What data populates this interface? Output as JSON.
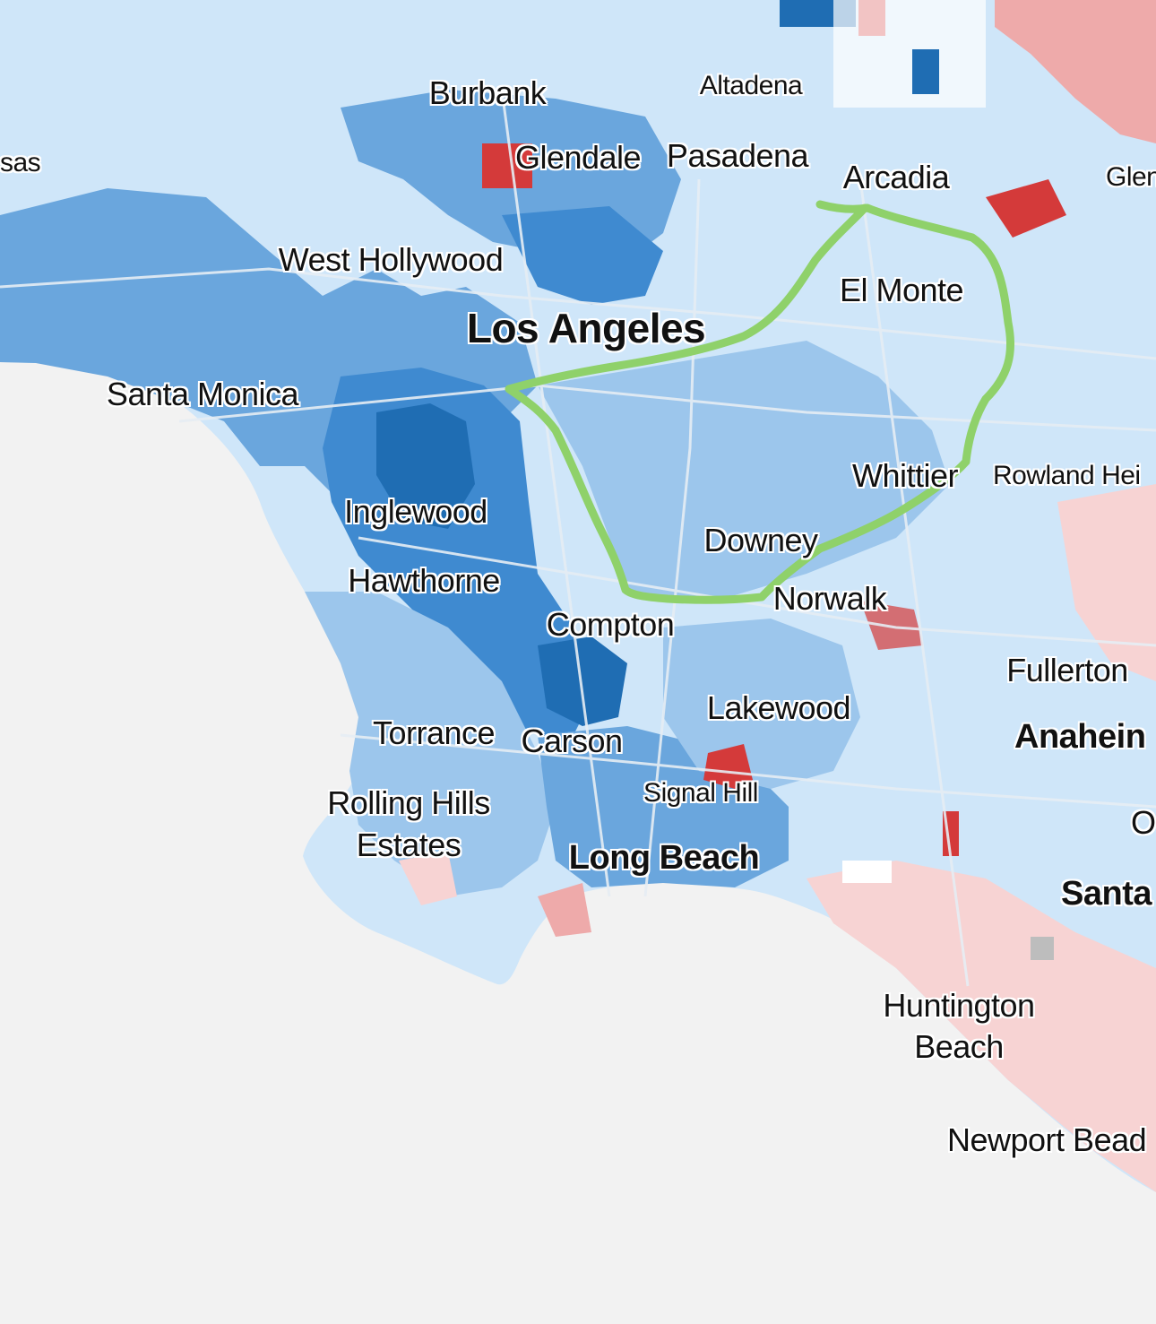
{
  "map": {
    "colors": {
      "ocean": "#f2f2f2",
      "dem_strong": "#1f6db3",
      "dem_medium": "#3f8ad0",
      "dem_mid": "#6aa6dd",
      "dem_light": "#9cc6ec",
      "dem_faint": "#cfe6f9",
      "rep_faint": "#f7d3d3",
      "rep_light": "#eeaaaa",
      "rep_strong": "#d43a3a",
      "no_data": "#ffffff",
      "gray": "#bdbdbd",
      "road": "#e6edf4",
      "annotation_outline": "#8fd16a"
    },
    "annotation": {
      "shape": "hand-drawn outline",
      "color": "#8fd16a"
    },
    "cities": [
      {
        "name": "Burbank",
        "id": "burbank"
      },
      {
        "name": "Altadena",
        "id": "altadena"
      },
      {
        "name": "Glendale",
        "id": "glendale"
      },
      {
        "name": "Pasadena",
        "id": "pasadena"
      },
      {
        "name": "Arcadia",
        "id": "arcadia"
      },
      {
        "name": "Glen",
        "id": "glendora-cut"
      },
      {
        "name": "sas",
        "id": "calabasas-cut"
      },
      {
        "name": "West Hollywood",
        "id": "west-hollywood"
      },
      {
        "name": "El Monte",
        "id": "el-monte"
      },
      {
        "name": "Los Angeles",
        "id": "los-angeles"
      },
      {
        "name": "Santa Monica",
        "id": "santa-monica"
      },
      {
        "name": "Whittier",
        "id": "whittier"
      },
      {
        "name": "Rowland Hei",
        "id": "rowland-heights-cut"
      },
      {
        "name": "Inglewood",
        "id": "inglewood"
      },
      {
        "name": "Downey",
        "id": "downey"
      },
      {
        "name": "Hawthorne",
        "id": "hawthorne"
      },
      {
        "name": "Norwalk",
        "id": "norwalk"
      },
      {
        "name": "Compton",
        "id": "compton"
      },
      {
        "name": "Fullerton",
        "id": "fullerton"
      },
      {
        "name": "Lakewood",
        "id": "lakewood"
      },
      {
        "name": "Anahein",
        "id": "anaheim-cut"
      },
      {
        "name": "Torrance",
        "id": "torrance"
      },
      {
        "name": "Carson",
        "id": "carson"
      },
      {
        "name": "Signal Hill",
        "id": "signal-hill"
      },
      {
        "name": "O",
        "id": "orange-cut"
      },
      {
        "name": "Rolling Hills",
        "id": "rolling-hills-1"
      },
      {
        "name": "Estates",
        "id": "rolling-hills-2"
      },
      {
        "name": "Long Beach",
        "id": "long-beach"
      },
      {
        "name": "Santa",
        "id": "santa-ana-cut"
      },
      {
        "name": "Huntington",
        "id": "huntington-1"
      },
      {
        "name": "Beach",
        "id": "huntington-2"
      },
      {
        "name": "Newport Bead",
        "id": "newport-beach-cut"
      }
    ]
  }
}
